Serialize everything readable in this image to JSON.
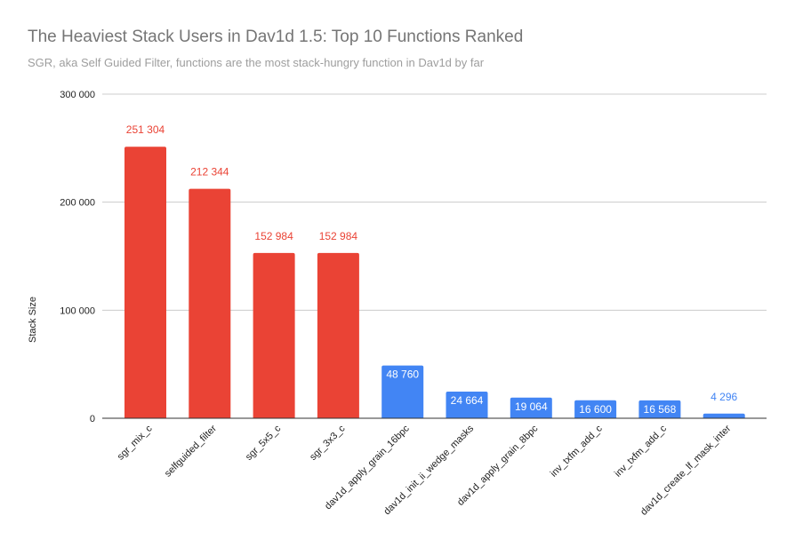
{
  "chart_data": {
    "type": "bar",
    "title": "The Heaviest Stack Users in Dav1d 1.5: Top 10 Functions Ranked",
    "subtitle": "SGR, aka Self Guided Filter, functions are the most stack-hungry function in Dav1d by far",
    "xlabel": "",
    "ylabel": "Stack Size",
    "ylim": [
      0,
      300000
    ],
    "yticks": [
      0,
      100000,
      200000,
      300000
    ],
    "ytick_labels": [
      "0",
      "100 000",
      "200 000",
      "300 000"
    ],
    "grid": true,
    "legend": null,
    "categories": [
      "sgr_mix_c",
      "selfguided_filter",
      "sgr_5x5_c",
      "sgr_3x3_c",
      "dav1d_apply_grain_16bpc",
      "dav1d_init_ii_wedge_masks",
      "dav1d_apply_grain_8bpc",
      "inv_txfm_add_c",
      "inv_txfm_add_c",
      "dav1d_create_lf_mask_inter"
    ],
    "values": [
      251304,
      212344,
      152984,
      152984,
      48760,
      24664,
      19064,
      16600,
      16568,
      4296
    ],
    "value_labels": [
      "251 304",
      "212 344",
      "152 984",
      "152 984",
      "48 760",
      "24 664",
      "19 064",
      "16 600",
      "16 568",
      "4 296"
    ],
    "bar_colors": [
      "#ea4335",
      "#ea4335",
      "#ea4335",
      "#ea4335",
      "#4285f4",
      "#4285f4",
      "#4285f4",
      "#4285f4",
      "#4285f4",
      "#4285f4"
    ]
  },
  "colors": {
    "sgr": "#ea4335",
    "other": "#4285f4",
    "grid": "#cccccc",
    "axis": "#333333",
    "title": "#757575",
    "subtitle": "#9e9e9e"
  }
}
